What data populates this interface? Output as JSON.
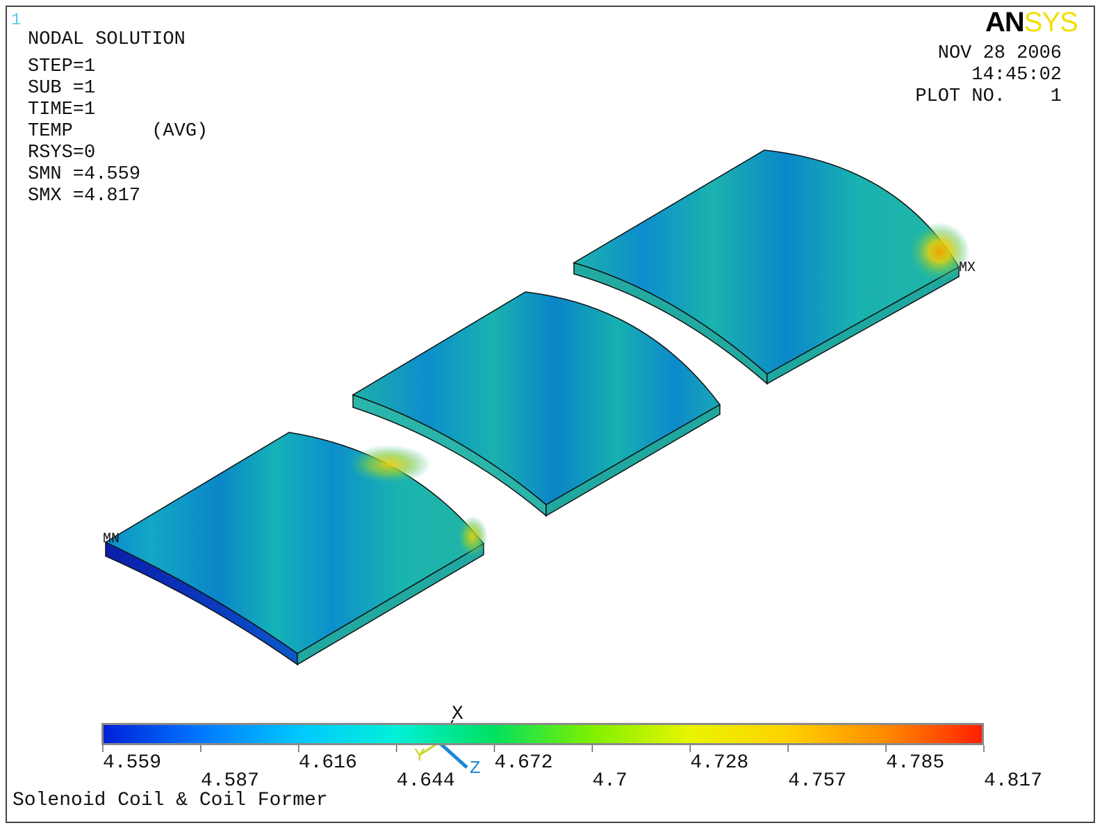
{
  "window_number": "1",
  "logo": {
    "an": "AN",
    "sys": "SYS"
  },
  "info_lines": [
    "NODAL SOLUTION",
    "STEP=1",
    "SUB =1",
    "TIME=1",
    "TEMP       (AVG)",
    "RSYS=0",
    "SMN =4.559",
    "SMX =4.817"
  ],
  "stamp": {
    "date": "NOV 28 2006",
    "time": "14:45:02",
    "plot_no": "PLOT NO.    1"
  },
  "markers": {
    "min": "MN",
    "max": "MX"
  },
  "triad": {
    "x": "X",
    "y": "Y",
    "z": "Z"
  },
  "legend": {
    "labels": [
      "4.559",
      "4.587",
      "4.616",
      "4.644",
      "4.672",
      "4.7",
      "4.728",
      "4.757",
      "4.785",
      "4.817"
    ],
    "colors": [
      "#0020d8",
      "#0078ff",
      "#00c8ff",
      "#00f0d8",
      "#00e060",
      "#7ff000",
      "#e8f500",
      "#ffd200",
      "#ff8c00",
      "#ff2000"
    ]
  },
  "footer_title": "Solenoid Coil & Coil Former",
  "field_colors": {
    "dark_blue": "#0a2fb8",
    "blue": "#0a7bd6",
    "cyan": "#0ab8c8",
    "teal": "#18b0a0",
    "green": "#4ec46a",
    "yellow": "#d8d820",
    "orange": "#f0a000"
  }
}
